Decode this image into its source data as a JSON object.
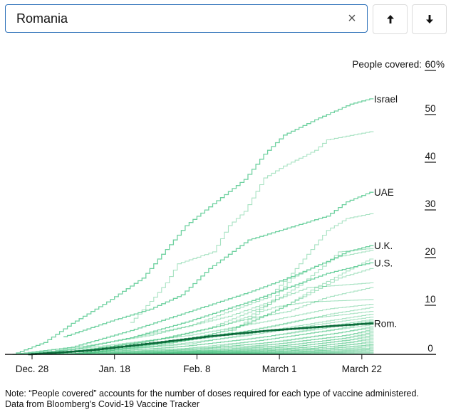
{
  "search": {
    "value": "Romania",
    "clear_label": "×",
    "up_label": "previous-result",
    "down_label": "next-result"
  },
  "icons": {
    "clear": "close-icon",
    "up": "arrow-up-icon",
    "down": "arrow-down-icon"
  },
  "colors": {
    "line": "#6fd1a0",
    "background_line": "#3cbf78",
    "highlight": "#0b6b3a",
    "axis": "#111111"
  },
  "note": "Note: “People covered” accounts for the number of doses required for each type of vaccine administered. Data from Bloomberg's Covid-19 Vaccine Tracker",
  "chart_data": {
    "type": "line",
    "title": "",
    "ylabel": "People covered:",
    "y_unit": "%",
    "ylim": [
      0,
      60
    ],
    "y_ticks": [
      {
        "value": 0,
        "label": "0"
      },
      {
        "value": 10,
        "label": "10"
      },
      {
        "value": 20,
        "label": "20"
      },
      {
        "value": 30,
        "label": "30"
      },
      {
        "value": 40,
        "label": "40"
      },
      {
        "value": 50,
        "label": "50"
      },
      {
        "value": 60,
        "label": "60"
      }
    ],
    "x_unit": "days since Dec. 28",
    "xlim": [
      -6,
      103
    ],
    "x_ticks": [
      {
        "value": 0,
        "label": "Dec. 28"
      },
      {
        "value": 21,
        "label": "Jan. 18"
      },
      {
        "value": 42,
        "label": "Feb. 8"
      },
      {
        "value": 63,
        "label": "March 1"
      },
      {
        "value": 84,
        "label": "March 22"
      }
    ],
    "labeled_series": [
      {
        "name": "Israel",
        "label": "Israel",
        "highlight": false,
        "points": [
          [
            -5,
            0
          ],
          [
            3,
            2.5
          ],
          [
            10,
            6.5
          ],
          [
            19,
            11
          ],
          [
            28,
            16
          ],
          [
            34,
            22
          ],
          [
            39,
            27
          ],
          [
            46,
            31.6
          ],
          [
            54,
            36.7
          ],
          [
            59,
            42
          ],
          [
            64,
            46
          ],
          [
            73,
            49.6
          ],
          [
            81,
            52.5
          ],
          [
            86,
            53.6
          ]
        ]
      },
      {
        "name": "UAE",
        "label": "UAE",
        "highlight": false,
        "points": [
          [
            8,
            3.7
          ],
          [
            20,
            7
          ],
          [
            30,
            9.5
          ],
          [
            38,
            12.5
          ],
          [
            45,
            18
          ],
          [
            50,
            21
          ],
          [
            55,
            24
          ],
          [
            65,
            26.5
          ],
          [
            75,
            29
          ],
          [
            80,
            32
          ],
          [
            86,
            34
          ]
        ]
      },
      {
        "name": "U.K.",
        "label": "U.K.",
        "highlight": false,
        "points": [
          [
            -5,
            0
          ],
          [
            10,
            1.5
          ],
          [
            25,
            5
          ],
          [
            40,
            9
          ],
          [
            55,
            13
          ],
          [
            65,
            16
          ],
          [
            75,
            19.5
          ],
          [
            80,
            21.5
          ],
          [
            86,
            22.8
          ]
        ]
      },
      {
        "name": "U.S.",
        "label": "U.S.",
        "highlight": false,
        "points": [
          [
            -5,
            0
          ],
          [
            10,
            1
          ],
          [
            25,
            3.5
          ],
          [
            40,
            7
          ],
          [
            55,
            11
          ],
          [
            65,
            14
          ],
          [
            75,
            17
          ],
          [
            86,
            19.2
          ]
        ]
      },
      {
        "name": "Romania",
        "label": "Rom.",
        "highlight": true,
        "points": [
          [
            -1,
            0
          ],
          [
            14,
            0.8
          ],
          [
            30,
            2.3
          ],
          [
            45,
            3.8
          ],
          [
            60,
            5.0
          ],
          [
            75,
            5.9
          ],
          [
            86,
            6.5
          ]
        ]
      }
    ],
    "unlabeled_series": [
      {
        "points": [
          [
            25,
            6.7
          ],
          [
            31,
            12
          ],
          [
            34,
            15
          ],
          [
            37,
            19
          ],
          [
            46,
            21.5
          ],
          [
            50,
            27
          ],
          [
            54,
            30
          ],
          [
            59,
            37
          ],
          [
            64,
            39.5
          ],
          [
            72,
            42.8
          ],
          [
            75,
            45
          ],
          [
            86,
            46.7
          ]
        ]
      },
      {
        "points": [
          [
            10,
            1
          ],
          [
            40,
            6
          ],
          [
            60,
            12
          ],
          [
            66,
            17
          ],
          [
            70,
            21
          ],
          [
            75,
            26
          ],
          [
            80,
            28.5
          ],
          [
            86,
            29.5
          ]
        ]
      },
      {
        "points": [
          [
            0,
            0
          ],
          [
            30,
            4
          ],
          [
            50,
            8
          ],
          [
            62,
            11.5
          ],
          [
            70,
            14
          ],
          [
            86,
            15
          ]
        ]
      },
      {
        "points": [
          [
            5,
            0
          ],
          [
            35,
            3.5
          ],
          [
            55,
            7.5
          ],
          [
            65,
            9
          ],
          [
            75,
            12
          ],
          [
            86,
            14
          ]
        ]
      },
      {
        "points": [
          [
            0,
            0
          ],
          [
            40,
            4
          ],
          [
            60,
            7
          ],
          [
            75,
            9.5
          ],
          [
            86,
            10.5
          ]
        ]
      },
      {
        "points": [
          [
            5,
            0
          ],
          [
            45,
            3.5
          ],
          [
            62,
            6
          ],
          [
            76,
            8.5
          ],
          [
            86,
            9.8
          ]
        ]
      },
      {
        "points": [
          [
            0,
            0
          ],
          [
            30,
            2
          ],
          [
            55,
            5
          ],
          [
            70,
            7.5
          ],
          [
            86,
            9
          ]
        ]
      },
      {
        "points": [
          [
            8,
            0
          ],
          [
            40,
            2.2
          ],
          [
            60,
            5
          ],
          [
            75,
            7
          ],
          [
            86,
            8.4
          ]
        ]
      },
      {
        "points": [
          [
            3,
            0
          ],
          [
            35,
            2
          ],
          [
            55,
            4
          ],
          [
            72,
            6.2
          ],
          [
            86,
            7.8
          ]
        ]
      },
      {
        "points": [
          [
            10,
            0
          ],
          [
            40,
            1.8
          ],
          [
            60,
            3.8
          ],
          [
            76,
            6
          ],
          [
            86,
            7.3
          ]
        ]
      },
      {
        "points": [
          [
            5,
            0
          ],
          [
            35,
            1.4
          ],
          [
            55,
            3.2
          ],
          [
            72,
            5.2
          ],
          [
            86,
            7
          ]
        ]
      },
      {
        "points": [
          [
            12,
            0
          ],
          [
            45,
            1.5
          ],
          [
            62,
            3.4
          ],
          [
            78,
            5.4
          ],
          [
            86,
            6.8
          ]
        ]
      },
      {
        "points": [
          [
            6,
            0
          ],
          [
            38,
            1.2
          ],
          [
            58,
            2.9
          ],
          [
            74,
            4.8
          ],
          [
            86,
            6.2
          ]
        ]
      },
      {
        "points": [
          [
            15,
            0
          ],
          [
            44,
            1.2
          ],
          [
            64,
            2.8
          ],
          [
            78,
            4.5
          ],
          [
            86,
            5.8
          ]
        ]
      },
      {
        "points": [
          [
            8,
            0
          ],
          [
            40,
            1
          ],
          [
            60,
            2.5
          ],
          [
            75,
            4.2
          ],
          [
            86,
            5.5
          ]
        ]
      },
      {
        "points": [
          [
            18,
            0
          ],
          [
            48,
            1
          ],
          [
            65,
            2.4
          ],
          [
            80,
            4
          ],
          [
            86,
            5.2
          ]
        ]
      },
      {
        "points": [
          [
            10,
            0
          ],
          [
            42,
            0.9
          ],
          [
            62,
            2.2
          ],
          [
            78,
            3.8
          ],
          [
            86,
            4.9
          ]
        ]
      },
      {
        "points": [
          [
            20,
            0
          ],
          [
            50,
            0.9
          ],
          [
            66,
            2
          ],
          [
            80,
            3.5
          ],
          [
            86,
            4.6
          ]
        ]
      },
      {
        "points": [
          [
            12,
            0
          ],
          [
            45,
            0.8
          ],
          [
            64,
            1.9
          ],
          [
            79,
            3.3
          ],
          [
            86,
            4.3
          ]
        ]
      },
      {
        "points": [
          [
            22,
            0
          ],
          [
            52,
            0.8
          ],
          [
            68,
            1.8
          ],
          [
            81,
            3.1
          ],
          [
            86,
            4
          ]
        ]
      },
      {
        "points": [
          [
            15,
            0
          ],
          [
            48,
            0.7
          ],
          [
            66,
            1.6
          ],
          [
            80,
            2.9
          ],
          [
            86,
            3.7
          ]
        ]
      },
      {
        "points": [
          [
            25,
            0
          ],
          [
            54,
            0.7
          ],
          [
            70,
            1.5
          ],
          [
            82,
            2.7
          ],
          [
            86,
            3.4
          ]
        ]
      },
      {
        "points": [
          [
            18,
            0
          ],
          [
            50,
            0.6
          ],
          [
            68,
            1.4
          ],
          [
            81,
            2.5
          ],
          [
            86,
            3.1
          ]
        ]
      },
      {
        "points": [
          [
            28,
            0
          ],
          [
            56,
            0.6
          ],
          [
            72,
            1.3
          ],
          [
            83,
            2.3
          ],
          [
            86,
            2.8
          ]
        ]
      },
      {
        "points": [
          [
            20,
            0
          ],
          [
            52,
            0.5
          ],
          [
            70,
            1.2
          ],
          [
            82,
            2.1
          ],
          [
            86,
            2.5
          ]
        ]
      },
      {
        "points": [
          [
            30,
            0
          ],
          [
            58,
            0.5
          ],
          [
            73,
            1.1
          ],
          [
            84,
            1.9
          ],
          [
            86,
            2.2
          ]
        ]
      },
      {
        "points": [
          [
            24,
            0
          ],
          [
            55,
            0.4
          ],
          [
            72,
            1
          ],
          [
            83,
            1.7
          ],
          [
            86,
            2
          ]
        ]
      },
      {
        "points": [
          [
            34,
            0
          ],
          [
            60,
            0.4
          ],
          [
            75,
            0.9
          ],
          [
            84,
            1.5
          ],
          [
            86,
            1.8
          ]
        ]
      },
      {
        "points": [
          [
            28,
            0
          ],
          [
            58,
            0.3
          ],
          [
            74,
            0.8
          ],
          [
            85,
            1.3
          ],
          [
            86,
            1.5
          ]
        ]
      },
      {
        "points": [
          [
            38,
            0
          ],
          [
            62,
            0.3
          ],
          [
            76,
            0.7
          ],
          [
            85,
            1.1
          ],
          [
            86,
            1.3
          ]
        ]
      },
      {
        "points": [
          [
            32,
            0
          ],
          [
            60,
            0.2
          ],
          [
            77,
            0.6
          ],
          [
            86,
            1
          ]
        ]
      },
      {
        "points": [
          [
            42,
            0
          ],
          [
            65,
            0.2
          ],
          [
            78,
            0.5
          ],
          [
            86,
            0.8
          ]
        ]
      },
      {
        "points": [
          [
            36,
            0
          ],
          [
            63,
            0.15
          ],
          [
            79,
            0.4
          ],
          [
            86,
            0.6
          ]
        ]
      },
      {
        "points": [
          [
            46,
            0
          ],
          [
            68,
            0.1
          ],
          [
            80,
            0.3
          ],
          [
            86,
            0.4
          ]
        ]
      },
      {
        "points": [
          [
            50,
            0
          ],
          [
            72,
            0.1
          ],
          [
            86,
            0.25
          ]
        ]
      },
      {
        "points": [
          [
            8,
            0
          ],
          [
            30,
            1.6
          ],
          [
            50,
            4.5
          ],
          [
            58,
            9
          ],
          [
            62,
            10
          ],
          [
            70,
            11
          ],
          [
            86,
            11.5
          ]
        ]
      },
      {
        "points": [
          [
            10,
            0
          ],
          [
            35,
            2.6
          ],
          [
            50,
            5
          ],
          [
            60,
            8.5
          ],
          [
            70,
            12.5
          ],
          [
            78,
            16
          ],
          [
            86,
            18
          ]
        ]
      },
      {
        "points": [
          [
            12,
            0
          ],
          [
            40,
            3
          ],
          [
            55,
            6.5
          ],
          [
            64,
            10
          ],
          [
            72,
            14
          ],
          [
            80,
            17.5
          ],
          [
            86,
            20
          ]
        ]
      },
      {
        "points": [
          [
            5,
            0
          ],
          [
            30,
            2.8
          ],
          [
            48,
            6
          ],
          [
            55,
            8
          ],
          [
            68,
            14.5
          ],
          [
            74,
            18.5
          ],
          [
            78,
            21.5
          ],
          [
            86,
            22.2
          ]
        ]
      },
      {
        "points": [
          [
            3,
            0
          ],
          [
            28,
            2.5
          ],
          [
            45,
            5.5
          ],
          [
            60,
            10.5
          ],
          [
            66,
            16
          ],
          [
            72,
            18.5
          ],
          [
            78,
            20.5
          ],
          [
            86,
            21.8
          ]
        ]
      }
    ]
  }
}
